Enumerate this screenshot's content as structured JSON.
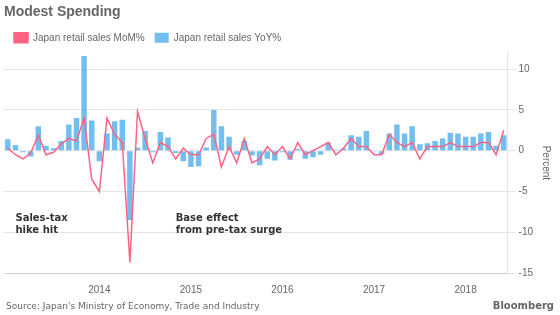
{
  "chart_data": {
    "type": "bar",
    "title": "Modest Spending",
    "ylabel": "Percent",
    "source": "Source: Japan's Ministry of Economy, Trade and Industry",
    "credit": "Bloomberg",
    "annotations": [
      "Sales-tax\nhike hit",
      "Base effect\nfrom pre-tax surge"
    ],
    "legend": "upper left",
    "grid": "y",
    "ylim": [
      -15,
      12
    ],
    "yticks": [
      -15,
      -10,
      -5,
      0,
      5,
      10
    ],
    "categories": [
      null,
      null,
      null,
      null,
      null,
      null,
      null,
      null,
      null,
      null,
      null,
      null,
      "2014",
      null,
      null,
      null,
      null,
      null,
      null,
      null,
      null,
      null,
      null,
      null,
      "2015",
      null,
      null,
      null,
      null,
      null,
      null,
      null,
      null,
      null,
      null,
      null,
      "2016",
      null,
      null,
      null,
      null,
      null,
      null,
      null,
      null,
      null,
      null,
      null,
      "2017",
      null,
      null,
      null,
      null,
      null,
      null,
      null,
      null,
      null,
      null,
      null,
      "2018",
      null,
      null,
      null,
      null,
      null
    ],
    "series": [
      {
        "name": "Japan retail sales YoY%",
        "type": "bar",
        "values": [
          1.4,
          0.7,
          -0.2,
          -0.7,
          3.0,
          0.6,
          0.3,
          1.2,
          3.2,
          4.0,
          11.6,
          3.7,
          -1.3,
          2.1,
          3.6,
          3.8,
          -8.5,
          0.4,
          2.4,
          -0.2,
          2.3,
          1.6,
          -0.3,
          -1.3,
          -2.0,
          -1.9,
          0.4,
          5.0,
          3.0,
          1.7,
          -0.5,
          1.2,
          -0.6,
          -1.8,
          -1.0,
          -1.2,
          -0.2,
          -1.1,
          0.2,
          -1.0,
          -0.8,
          -0.5,
          1.0,
          0.1,
          0.3,
          1.9,
          1.7,
          2.4,
          -0.1,
          -0.4,
          2.1,
          3.2,
          2.1,
          3.0,
          0.8,
          0.9,
          1.2,
          1.5,
          2.2,
          2.1,
          1.7,
          1.7,
          2.1,
          2.3,
          0.6,
          1.9
        ]
      },
      {
        "name": "Japan retail sales MoM%",
        "type": "line",
        "values": [
          0.3,
          -0.5,
          -1.0,
          -0.3,
          1.9,
          -0.5,
          -0.2,
          0.8,
          1.5,
          1.2,
          4.0,
          -3.5,
          -5.0,
          4.0,
          2.0,
          1.0,
          -13.7,
          4.8,
          1.5,
          -1.5,
          1.0,
          0.5,
          -1.0,
          0.3,
          -0.5,
          -0.5,
          1.5,
          2.0,
          -2.0,
          0.5,
          -1.5,
          1.5,
          -1.5,
          -1.0,
          0.5,
          -0.5,
          0.5,
          -1.0,
          1.0,
          -0.5,
          0.0,
          0.5,
          1.0,
          -0.5,
          0.3,
          1.5,
          0.5,
          0.5,
          -0.5,
          -0.5,
          2.0,
          1.0,
          0.5,
          1.0,
          -1.0,
          0.5,
          0.5,
          0.5,
          1.0,
          0.5,
          0.5,
          0.5,
          1.0,
          1.0,
          -0.5,
          2.5
        ]
      }
    ]
  }
}
